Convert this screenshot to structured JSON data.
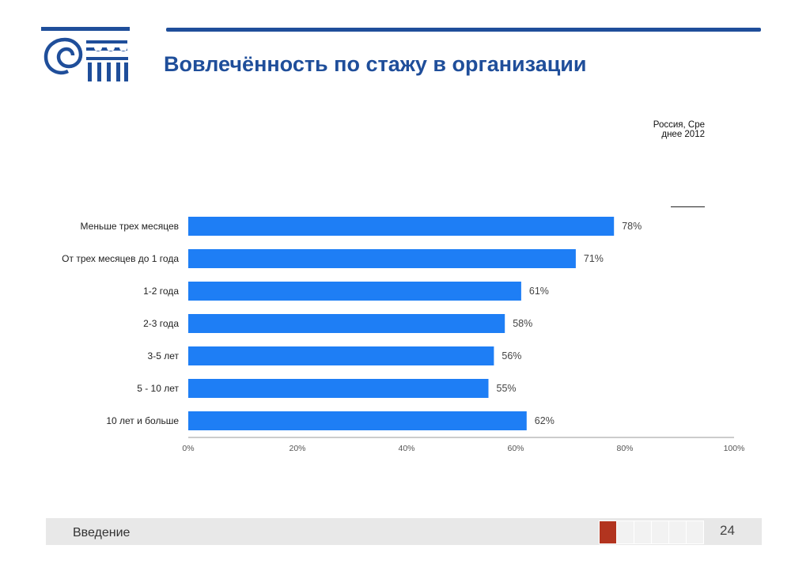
{
  "header": {
    "title": "Вовлечённость по стажу в организации"
  },
  "legend": {
    "label": "Россия, Среднее 2012"
  },
  "colors": {
    "bar": "#1e7ef5",
    "brand": "#1f4e9a",
    "accent": "#b2341f"
  },
  "chart_data": {
    "type": "bar",
    "orientation": "horizontal",
    "categories": [
      "Меньше трех месяцев",
      "От трех месяцев до 1 года",
      "1-2 года",
      "2-3 года",
      "3-5 лет",
      "5 - 10 лет",
      "10 лет и больше"
    ],
    "values": [
      78,
      71,
      61,
      58,
      56,
      55,
      62
    ],
    "value_labels": [
      "78%",
      "71%",
      "61%",
      "58%",
      "56%",
      "55%",
      "62%"
    ],
    "xlim": [
      0,
      100
    ],
    "xticks": [
      "0%",
      "20%",
      "40%",
      "60%",
      "80%",
      "100%"
    ],
    "grid": false
  },
  "footer": {
    "section": "Введение",
    "page": "24"
  }
}
